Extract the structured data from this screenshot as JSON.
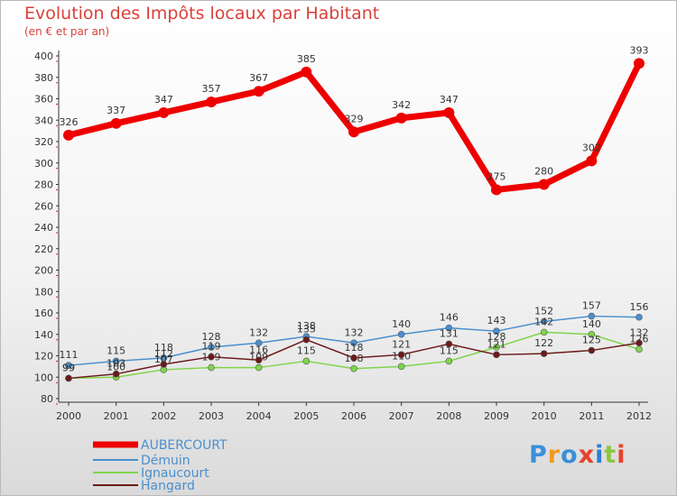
{
  "chart_data": {
    "type": "line",
    "title": "Evolution des Impôts locaux par Habitant",
    "subtitle": "(en € et par an)",
    "xlabel": "",
    "ylabel": "",
    "x": [
      "2000",
      "2001",
      "2002",
      "2003",
      "2004",
      "2005",
      "2006",
      "2007",
      "2008",
      "2009",
      "2010",
      "2011",
      "2012"
    ],
    "ylim": [
      80,
      400
    ],
    "yticks": [
      80,
      100,
      120,
      140,
      160,
      180,
      200,
      220,
      240,
      260,
      280,
      300,
      320,
      340,
      360,
      380,
      400
    ],
    "grid": false,
    "legend_position": "bottom-left",
    "series": [
      {
        "name": "AUBERCOURT",
        "color": "#ee0000",
        "values": [
          326,
          337,
          347,
          357,
          367,
          385,
          329,
          342,
          347,
          275,
          280,
          302,
          393
        ]
      },
      {
        "name": "Démuin",
        "color": "#4a8fce",
        "values": [
          111,
          115,
          118,
          128,
          132,
          138,
          132,
          140,
          146,
          143,
          152,
          157,
          156
        ]
      },
      {
        "name": "Ignaucourt",
        "color": "#7fd44a",
        "values": [
          99,
          100,
          107,
          109,
          109,
          115,
          108,
          110,
          115,
          128,
          142,
          140,
          126
        ]
      },
      {
        "name": "Hangard",
        "color": "#6b1a1a",
        "values": [
          99,
          103,
          112,
          119,
          116,
          135,
          118,
          121,
          131,
          121,
          122,
          125,
          132
        ]
      }
    ]
  },
  "logo": {
    "text": "Proxiti",
    "letters": [
      "P",
      "r",
      "o",
      "x",
      "i",
      "t",
      "i"
    ]
  }
}
